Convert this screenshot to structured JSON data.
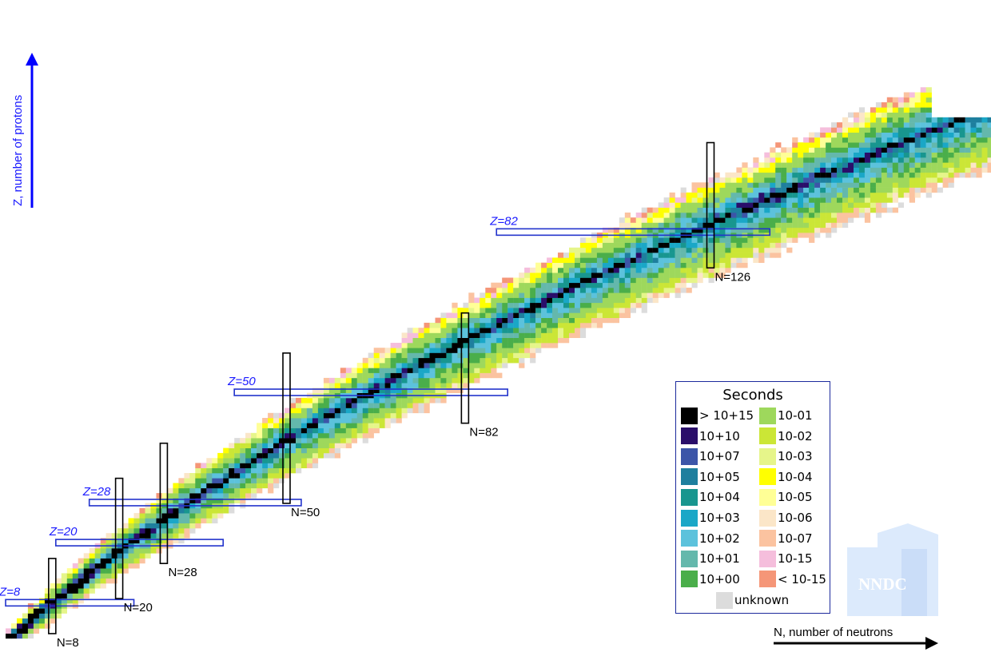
{
  "chart_data": {
    "type": "heatmap",
    "title": "",
    "xlabel": "N, number of neutrons",
    "ylabel": "Z, number of protons",
    "xlim": [
      0,
      177
    ],
    "ylim": [
      0,
      118
    ],
    "magic_numbers": {
      "Z": [
        {
          "value": 8,
          "label": "Z=8"
        },
        {
          "value": 20,
          "label": "Z=20"
        },
        {
          "value": 28,
          "label": "Z=28"
        },
        {
          "value": 50,
          "label": "Z=50"
        },
        {
          "value": 82,
          "label": "Z=82"
        }
      ],
      "N": [
        {
          "value": 8,
          "label": "N=8"
        },
        {
          "value": 20,
          "label": "N=20"
        },
        {
          "value": 28,
          "label": "N=28"
        },
        {
          "value": 50,
          "label": "N=50"
        },
        {
          "value": 82,
          "label": "N=82"
        },
        {
          "value": 126,
          "label": "N=126"
        }
      ]
    },
    "legend": {
      "title": "Seconds",
      "placement": "bottom-right",
      "entries": [
        {
          "label": "> 10+15",
          "color": "#000000"
        },
        {
          "label": "10+10",
          "color": "#2a0e6a"
        },
        {
          "label": "10+07",
          "color": "#3c55a8"
        },
        {
          "label": "10+05",
          "color": "#1e7f9e"
        },
        {
          "label": "10+04",
          "color": "#18968f"
        },
        {
          "label": "10+03",
          "color": "#1aa7c7"
        },
        {
          "label": "10+02",
          "color": "#5cc2dc"
        },
        {
          "label": "10+01",
          "color": "#64b8ac"
        },
        {
          "label": "10+00",
          "color": "#4aae4a"
        },
        {
          "label": "10-01",
          "color": "#9ed85c"
        },
        {
          "label": "10-02",
          "color": "#cbe636"
        },
        {
          "label": "10-03",
          "color": "#e6f58a"
        },
        {
          "label": "10-04",
          "color": "#ffff00"
        },
        {
          "label": "10-05",
          "color": "#ffff96"
        },
        {
          "label": "10-06",
          "color": "#fbe6c8"
        },
        {
          "label": "10-07",
          "color": "#fbc3a0"
        },
        {
          "label": "10-15",
          "color": "#f5bedc"
        },
        {
          "label": "< 10-15",
          "color": "#f59678"
        },
        {
          "label": "unknown",
          "color": "#dcdcdc"
        }
      ]
    },
    "grid": false
  },
  "logo": {
    "text": "NNDC"
  },
  "colors": {
    "magic_Z_box": "#2233cc",
    "magic_N_box": "#000000",
    "axis_arrow_z": "#0000ff",
    "axis_arrow_n": "#000000"
  }
}
